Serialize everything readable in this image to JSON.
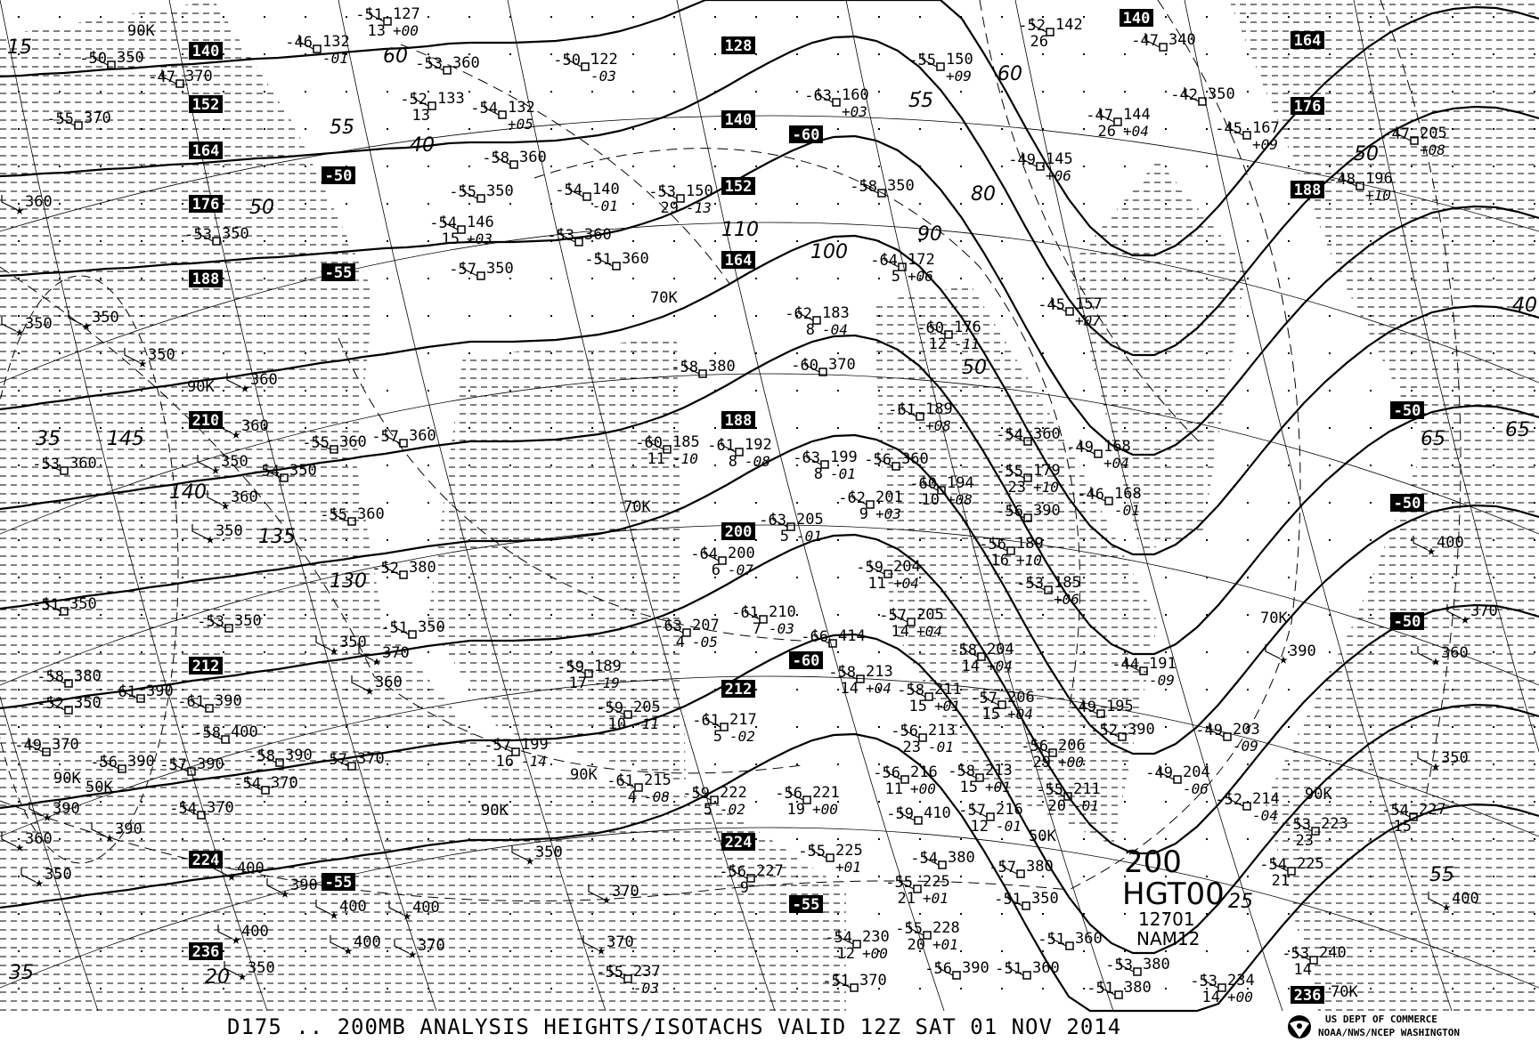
{
  "footer": {
    "title": "D175 .. 200MB   ANALYSIS  HEIGHTS/ISOTACHS VALID 12Z SAT 01 NOV 2014",
    "org_line1": "US DEPT OF COMMERCE",
    "org_line2": "NOAA/NWS/NCEP WASHINGTON",
    "logo": "noaa-logo"
  },
  "model_box": {
    "level": "200",
    "field": "HGT00",
    "run": "12701",
    "model": "NAM12"
  },
  "colors": {
    "ink": "#000000",
    "background": "#ffffff"
  },
  "height_labels": [
    "140",
    "152",
    "164",
    "176",
    "188",
    "210",
    "212",
    "224",
    "236",
    "128",
    "140",
    "152",
    "164",
    "188",
    "200",
    "212",
    "224",
    "140",
    "164",
    "176",
    "188",
    "236"
  ],
  "temp_labels": [
    "-50",
    "-55",
    "-60",
    "-60",
    "-55",
    "-55",
    "-50",
    "-50",
    "-50"
  ],
  "isotach_labels": [
    "15",
    "50",
    "55",
    "60",
    "40",
    "35",
    "145",
    "140",
    "135",
    "130",
    "100",
    "90",
    "80",
    "65",
    "55",
    "50",
    "60",
    "110",
    "25",
    "20",
    "35",
    "40",
    "50",
    "65",
    "55"
  ],
  "wind_markers": [
    "90K",
    "90K",
    "70K",
    "70K",
    "90K",
    "70K",
    "50K",
    "50K",
    "90K",
    "90K",
    "90K",
    "70K"
  ],
  "stations": [
    {
      "t": "-50",
      "h": "350"
    },
    {
      "t": "-47",
      "h": "370"
    },
    {
      "t": "-51",
      "h": "127",
      "dd": "13",
      "chg": "+00"
    },
    {
      "t": "-46",
      "h": "132",
      "chg": "-01"
    },
    {
      "t": "-53",
      "h": "360"
    },
    {
      "t": "-50",
      "h": "122",
      "chg": "-03"
    },
    {
      "t": "-52",
      "h": "133",
      "dd": "13"
    },
    {
      "t": "-54",
      "h": "132",
      "chg": "+05"
    },
    {
      "t": "-55",
      "h": "370"
    },
    {
      "t": "-58",
      "h": "360"
    },
    {
      "t": "-54",
      "h": "140",
      "chg": "-01"
    },
    {
      "t": "-55",
      "h": "350"
    },
    {
      "t": "-54",
      "h": "146",
      "dd": "15",
      "chg": "+03"
    },
    {
      "t": "-53",
      "h": "360"
    },
    {
      "t": "-57",
      "h": "350"
    },
    {
      "t": "-51",
      "h": "360"
    },
    {
      "t": "-53",
      "h": "150",
      "dd": "29",
      "chg": "-13"
    },
    {
      "t": "-63",
      "h": "160",
      "chg": "+03"
    },
    {
      "t": "-55",
      "h": "150",
      "chg": "+09"
    },
    {
      "t": "-52",
      "h": "142",
      "dd": "26"
    },
    {
      "t": "-47",
      "h": "340"
    },
    {
      "t": "-47",
      "h": "144",
      "dd": "26",
      "chg": "+04"
    },
    {
      "t": "-49",
      "h": "145",
      "chg": "+06"
    },
    {
      "t": "-58",
      "h": "350"
    },
    {
      "t": "-64",
      "h": "172",
      "dd": "5",
      "chg": "+06"
    },
    {
      "t": "-42",
      "h": "350"
    },
    {
      "t": "-45",
      "h": "167",
      "chg": "+09"
    },
    {
      "t": "-47",
      "h": "205",
      "chg": "+08"
    },
    {
      "t": "-48",
      "h": "196",
      "chg": "+10"
    },
    {
      "t": "-62",
      "h": "183",
      "dd": "8",
      "chg": "-04"
    },
    {
      "t": "-60",
      "h": "370"
    },
    {
      "t": "-58",
      "h": "380"
    },
    {
      "t": "-60",
      "h": "185",
      "dd": "11",
      "chg": "-10"
    },
    {
      "t": "-61",
      "h": "192",
      "dd": "8",
      "chg": "-08"
    },
    {
      "t": "-63",
      "h": "199",
      "dd": "8",
      "chg": "-01"
    },
    {
      "t": "-56",
      "h": "360"
    },
    {
      "t": "-62",
      "h": "201",
      "dd": "9",
      "chg": "+03"
    },
    {
      "t": "-60",
      "h": "194",
      "dd": "10",
      "chg": "+08"
    },
    {
      "t": "-63",
      "h": "205",
      "dd": "5",
      "chg": "-01"
    },
    {
      "t": "-64",
      "h": "200",
      "dd": "6",
      "chg": "-07"
    },
    {
      "t": "-61",
      "h": "189",
      "chg": "+08"
    },
    {
      "t": "-60",
      "h": "176",
      "dd": "12",
      "chg": "-11"
    },
    {
      "t": "-45",
      "h": "157",
      "chg": "+07"
    },
    {
      "t": "-54",
      "h": "360"
    },
    {
      "t": "-55",
      "h": "179",
      "dd": "23",
      "chg": "+10"
    },
    {
      "t": "-56",
      "h": "390"
    },
    {
      "t": "-49",
      "h": "168",
      "chg": "+04"
    },
    {
      "t": "-46",
      "h": "168",
      "chg": "-01"
    },
    {
      "t": "-56",
      "h": "189",
      "dd": "16",
      "chg": "+10"
    },
    {
      "t": "-53",
      "h": "185",
      "chg": "+06"
    },
    {
      "t": "-59",
      "h": "204",
      "dd": "11",
      "chg": "+04"
    },
    {
      "t": "-57",
      "h": "205",
      "dd": "14",
      "chg": "+04"
    },
    {
      "t": "-58",
      "h": "204",
      "dd": "14",
      "chg": "+04"
    },
    {
      "t": "-63",
      "h": "207",
      "dd": "4",
      "chg": "-05"
    },
    {
      "t": "-61",
      "h": "210",
      "dd": "7",
      "chg": "-03"
    },
    {
      "t": "-66",
      "h": "414"
    },
    {
      "t": "-58",
      "h": "213",
      "dd": "14",
      "chg": "+04"
    },
    {
      "t": "-58",
      "h": "211",
      "dd": "15",
      "chg": "+01"
    },
    {
      "t": "-56",
      "h": "213",
      "dd": "23",
      "chg": "-01"
    },
    {
      "t": "-61",
      "h": "217",
      "dd": "5",
      "chg": "-02"
    },
    {
      "t": "-59",
      "h": "205",
      "dd": "10",
      "chg": "-11"
    },
    {
      "t": "-59",
      "h": "189",
      "dd": "17",
      "chg": "-19"
    },
    {
      "t": "-57",
      "h": "199",
      "dd": "16",
      "chg": "-14"
    },
    {
      "t": "-61",
      "h": "215",
      "dd": "4",
      "chg": "-08"
    },
    {
      "t": "-59",
      "h": "222",
      "dd": "5",
      "chg": "-02"
    },
    {
      "t": "-56",
      "h": "221",
      "dd": "19",
      "chg": "+00"
    },
    {
      "t": "-56",
      "h": "216",
      "dd": "11",
      "chg": "+00"
    },
    {
      "t": "-58",
      "h": "213",
      "dd": "15",
      "chg": "+01"
    },
    {
      "t": "-57",
      "h": "216",
      "dd": "12",
      "chg": "-01"
    },
    {
      "t": "-59",
      "h": "410"
    },
    {
      "t": "-57",
      "h": "206",
      "dd": "15",
      "chg": "+04"
    },
    {
      "t": "-56",
      "h": "206",
      "dd": "29",
      "chg": "+00"
    },
    {
      "t": "-55",
      "h": "211",
      "dd": "20",
      "chg": "-01"
    },
    {
      "t": "-49",
      "h": "195"
    },
    {
      "t": "-52",
      "h": "390"
    },
    {
      "t": "-44",
      "h": "191",
      "chg": "-09"
    },
    {
      "t": "-49",
      "h": "203",
      "chg": "-09"
    },
    {
      "t": "-49",
      "h": "204",
      "chg": "-06"
    },
    {
      "t": "-52",
      "h": "214",
      "chg": "-04"
    },
    {
      "t": "-54",
      "h": "227",
      "dd": "15"
    },
    {
      "t": "-53",
      "h": "223",
      "dd": "23"
    },
    {
      "t": "-54",
      "h": "225",
      "dd": "21"
    },
    {
      "t": "-53",
      "h": "234",
      "dd": "14",
      "chg": "+00"
    },
    {
      "t": "-53",
      "h": "240",
      "dd": "14"
    },
    {
      "t": "-55",
      "h": "228",
      "dd": "20",
      "chg": "+01"
    },
    {
      "t": "-54",
      "h": "230",
      "dd": "12",
      "chg": "+00"
    },
    {
      "t": "-55",
      "h": "225",
      "dd": "21",
      "chg": "+01"
    },
    {
      "t": "-55",
      "h": "225",
      "chg": "+01"
    },
    {
      "t": "-56",
      "h": "227",
      "dd": "9"
    },
    {
      "t": "-55",
      "h": "237",
      "chg": "-03"
    },
    {
      "t": "-54",
      "h": "380"
    },
    {
      "t": "-57",
      "h": "380"
    },
    {
      "t": "-51",
      "h": "350"
    },
    {
      "t": "-51",
      "h": "360"
    },
    {
      "t": "-53",
      "h": "380"
    },
    {
      "t": "-56",
      "h": "390"
    },
    {
      "t": "-51",
      "h": "360"
    },
    {
      "t": "-51",
      "h": "380"
    },
    {
      "t": "-51",
      "h": "370"
    },
    {
      "t": "-53",
      "h": "350"
    },
    {
      "t": "",
      "h": "360"
    },
    {
      "t": "",
      "h": "350"
    },
    {
      "t": "",
      "h": "350"
    },
    {
      "t": "",
      "h": "350"
    },
    {
      "t": "",
      "h": "360"
    },
    {
      "t": "",
      "h": "360"
    },
    {
      "t": "-53",
      "h": "360"
    },
    {
      "t": "",
      "h": "350"
    },
    {
      "t": "",
      "h": "360"
    },
    {
      "t": "-54",
      "h": "350"
    },
    {
      "t": "",
      "h": "350"
    },
    {
      "t": "-55",
      "h": "360"
    },
    {
      "t": "-55",
      "h": "360"
    },
    {
      "t": "-57",
      "h": "360"
    },
    {
      "t": "-52",
      "h": "380"
    },
    {
      "t": "-51",
      "h": "350"
    },
    {
      "t": "-53",
      "h": "350"
    },
    {
      "t": "-51",
      "h": "350"
    },
    {
      "t": "",
      "h": "350"
    },
    {
      "t": "",
      "h": "370"
    },
    {
      "t": "-58",
      "h": "380"
    },
    {
      "t": "-52",
      "h": "350"
    },
    {
      "t": "-61",
      "h": "390"
    },
    {
      "t": "-61",
      "h": "390"
    },
    {
      "t": "-58",
      "h": "400"
    },
    {
      "t": "-58",
      "h": "390"
    },
    {
      "t": "-57",
      "h": "390"
    },
    {
      "t": "-57",
      "h": "370"
    },
    {
      "t": "-56",
      "h": "390"
    },
    {
      "t": "-54",
      "h": "370"
    },
    {
      "t": "-54",
      "h": "370"
    },
    {
      "t": "-49",
      "h": "370"
    },
    {
      "t": "",
      "h": "390"
    },
    {
      "t": "",
      "h": "390"
    },
    {
      "t": "",
      "h": "360"
    },
    {
      "t": "",
      "h": "350"
    },
    {
      "t": "",
      "h": "400"
    },
    {
      "t": "",
      "h": "390"
    },
    {
      "t": "",
      "h": "400"
    },
    {
      "t": "",
      "h": "400"
    },
    {
      "t": "",
      "h": "400"
    },
    {
      "t": "",
      "h": "400"
    },
    {
      "t": "",
      "h": "370"
    },
    {
      "t": "",
      "h": "350"
    },
    {
      "t": "",
      "h": "370"
    },
    {
      "t": "",
      "h": "360"
    },
    {
      "t": "",
      "h": "350"
    },
    {
      "t": "",
      "h": "370"
    },
    {
      "t": "",
      "h": "390"
    },
    {
      "t": "",
      "h": "400"
    },
    {
      "t": "",
      "h": "350"
    },
    {
      "t": "",
      "h": "360"
    },
    {
      "t": "",
      "h": "370"
    },
    {
      "t": "",
      "h": "400"
    }
  ]
}
